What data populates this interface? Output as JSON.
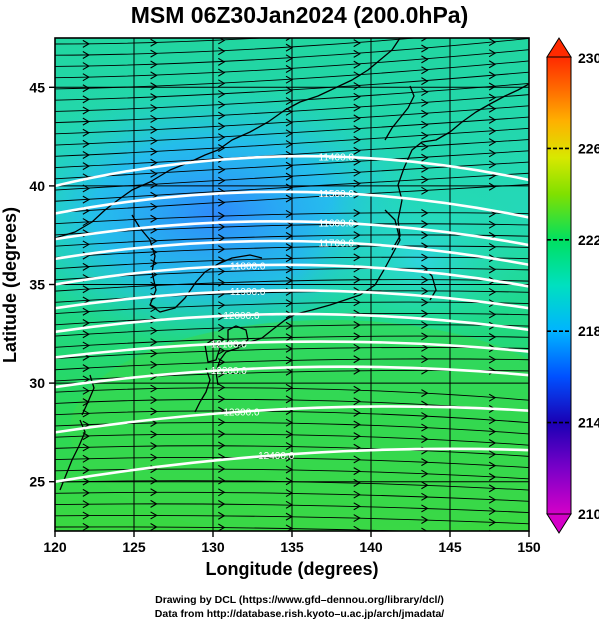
{
  "title": "MSM 06Z30Jan2024 (200.0hPa)",
  "x_axis": {
    "label": "Longitude (degrees)",
    "ticks": [
      120,
      125,
      130,
      135,
      140,
      145,
      150
    ],
    "range": [
      120,
      150
    ]
  },
  "y_axis": {
    "label": "Latitude  (degrees)",
    "ticks": [
      25,
      30,
      35,
      40,
      45
    ],
    "range": [
      22.5,
      47.5
    ]
  },
  "colorbar": {
    "ticks": [
      210,
      214,
      218,
      222,
      226,
      230
    ],
    "range": [
      210,
      230
    ]
  },
  "contours": [
    {
      "label": "11400.0",
      "lat_west": 40.0,
      "lat_mid": 41.5,
      "lat_east": 40.3,
      "label_lon": 137.8
    },
    {
      "label": "11500.0",
      "lat_west": 38.6,
      "lat_mid": 39.7,
      "lat_east": 38.4,
      "label_lon": 137.8
    },
    {
      "label": "11600.0",
      "lat_west": 37.3,
      "lat_mid": 38.2,
      "lat_east": 37.0,
      "label_lon": 137.8
    },
    {
      "label": "11700.0",
      "lat_west": 36.3,
      "lat_mid": 37.2,
      "lat_east": 36.0,
      "label_lon": 137.8
    },
    {
      "label": "11800.0",
      "lat_west": 35.0,
      "lat_mid": 36.0,
      "lat_east": 34.9,
      "label_lon": 132.2
    },
    {
      "label": "11900.0",
      "lat_west": 33.8,
      "lat_mid": 34.7,
      "lat_east": 33.8,
      "label_lon": 132.2
    },
    {
      "label": "12000.0",
      "lat_west": 32.6,
      "lat_mid": 33.5,
      "lat_east": 32.7,
      "label_lon": 131.8
    },
    {
      "label": "12100.0",
      "lat_west": 31.3,
      "lat_mid": 32.1,
      "lat_east": 31.6,
      "label_lon": 131.0
    },
    {
      "label": "12200.0",
      "lat_west": 29.8,
      "lat_mid": 30.8,
      "lat_east": 30.4,
      "label_lon": 131.0
    },
    {
      "label": "12300.0",
      "lat_west": 27.5,
      "lat_mid": 28.7,
      "lat_east": 28.6,
      "label_lon": 131.8
    },
    {
      "label": "12400.0",
      "lat_west": 25.0,
      "lat_mid": 26.4,
      "lat_east": 26.6,
      "label_lon": 134.0
    }
  ],
  "credits": [
    "Drawing by DCL (https://www.gfd–dennou.org/library/dcl/)",
    "Data from http://database.rish.kyoto–u.ac.jp/arch/jmadata/"
  ]
}
